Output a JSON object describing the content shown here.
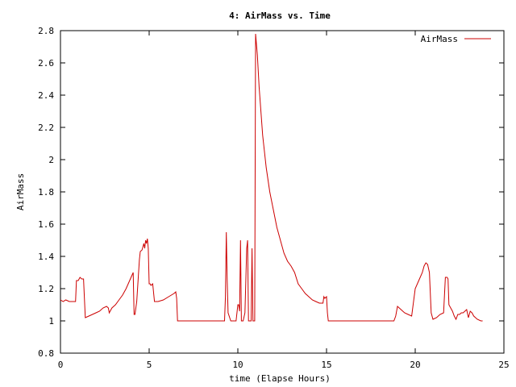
{
  "chart_data": {
    "type": "line",
    "title": "4: AirMass vs. Time",
    "xlabel": "time (Elapse Hours)",
    "ylabel": "AirMass",
    "xlim": [
      0,
      25
    ],
    "ylim": [
      0.8,
      2.8
    ],
    "xticks": [
      0,
      5,
      10,
      15,
      20,
      25
    ],
    "yticks": [
      0.8,
      1,
      1.2,
      1.4,
      1.6,
      1.8,
      2,
      2.2,
      2.4,
      2.6,
      2.8
    ],
    "xtick_labels": [
      "0",
      "5",
      "10",
      "15",
      "20",
      "25"
    ],
    "ytick_labels": [
      "0.8",
      "1",
      "1.2",
      "1.4",
      "1.6",
      "1.8",
      "2",
      "2.2",
      "2.4",
      "2.6",
      "2.8"
    ],
    "grid": false,
    "legend": "top-right",
    "series": [
      {
        "name": "AirMass",
        "color": "#cc0000",
        "x": [
          0.0,
          0.15,
          0.3,
          0.5,
          0.7,
          0.8,
          0.85,
          0.9,
          1.0,
          1.1,
          1.2,
          1.3,
          1.4,
          1.6,
          1.8,
          2.0,
          2.2,
          2.4,
          2.6,
          2.7,
          2.75,
          2.9,
          3.1,
          3.3,
          3.5,
          3.7,
          3.9,
          4.1,
          4.15,
          4.2,
          4.3,
          4.45,
          4.5,
          4.6,
          4.7,
          4.75,
          4.8,
          4.85,
          4.9,
          4.95,
          5.0,
          5.05,
          5.1,
          5.2,
          5.3,
          5.5,
          5.8,
          6.1,
          6.4,
          6.5,
          6.55,
          6.6,
          7.0,
          8.0,
          9.0,
          9.25,
          9.3,
          9.35,
          9.4,
          9.45,
          9.6,
          9.75,
          9.9,
          10.0,
          10.05,
          10.1,
          10.15,
          10.2,
          10.25,
          10.3,
          10.4,
          10.5,
          10.55,
          10.6,
          10.7,
          10.75,
          10.8,
          10.85,
          10.95,
          11.0,
          11.1,
          11.2,
          11.3,
          11.4,
          11.6,
          11.8,
          12.0,
          12.2,
          12.4,
          12.6,
          12.8,
          13.0,
          13.2,
          13.4,
          13.6,
          13.8,
          14.0,
          14.2,
          14.4,
          14.6,
          14.8,
          14.85,
          14.9,
          15.0,
          15.05,
          15.1,
          16.0,
          17.0,
          18.0,
          18.8,
          18.9,
          19.0,
          19.2,
          19.4,
          19.6,
          19.8,
          20.0,
          20.2,
          20.4,
          20.5,
          20.6,
          20.7,
          20.8,
          20.9,
          21.0,
          21.2,
          21.4,
          21.6,
          21.7,
          21.8,
          21.85,
          21.9,
          22.0,
          22.1,
          22.2,
          22.3,
          22.4,
          22.5,
          22.6,
          22.7,
          22.8,
          22.9,
          23.0,
          23.1,
          23.2,
          23.3,
          23.5,
          23.7,
          23.8
        ],
        "y": [
          1.13,
          1.12,
          1.13,
          1.12,
          1.12,
          1.12,
          1.12,
          1.25,
          1.25,
          1.27,
          1.26,
          1.26,
          1.02,
          1.03,
          1.04,
          1.05,
          1.06,
          1.08,
          1.09,
          1.08,
          1.05,
          1.08,
          1.1,
          1.13,
          1.16,
          1.2,
          1.25,
          1.3,
          1.04,
          1.04,
          1.12,
          1.38,
          1.43,
          1.44,
          1.48,
          1.45,
          1.5,
          1.48,
          1.51,
          1.45,
          1.23,
          1.23,
          1.22,
          1.23,
          1.12,
          1.12,
          1.13,
          1.15,
          1.17,
          1.18,
          1.14,
          1.0,
          1.0,
          1.0,
          1.0,
          1.0,
          1.15,
          1.55,
          1.25,
          1.05,
          1.0,
          1.0,
          1.0,
          1.1,
          1.1,
          1.06,
          1.5,
          1.0,
          1.0,
          1.0,
          1.05,
          1.45,
          1.5,
          1.0,
          1.0,
          1.0,
          1.45,
          1.0,
          1.0,
          2.78,
          2.65,
          2.45,
          2.3,
          2.15,
          1.95,
          1.8,
          1.69,
          1.58,
          1.5,
          1.42,
          1.37,
          1.34,
          1.3,
          1.23,
          1.2,
          1.17,
          1.15,
          1.13,
          1.12,
          1.11,
          1.11,
          1.15,
          1.14,
          1.15,
          1.05,
          1.0,
          1.0,
          1.0,
          1.0,
          1.0,
          1.03,
          1.09,
          1.07,
          1.05,
          1.04,
          1.03,
          1.2,
          1.25,
          1.3,
          1.34,
          1.36,
          1.35,
          1.3,
          1.05,
          1.01,
          1.02,
          1.04,
          1.05,
          1.27,
          1.27,
          1.26,
          1.1,
          1.08,
          1.06,
          1.03,
          1.01,
          1.04,
          1.04,
          1.05,
          1.05,
          1.06,
          1.07,
          1.02,
          1.06,
          1.05,
          1.03,
          1.01,
          1.0,
          1.0
        ]
      }
    ]
  }
}
